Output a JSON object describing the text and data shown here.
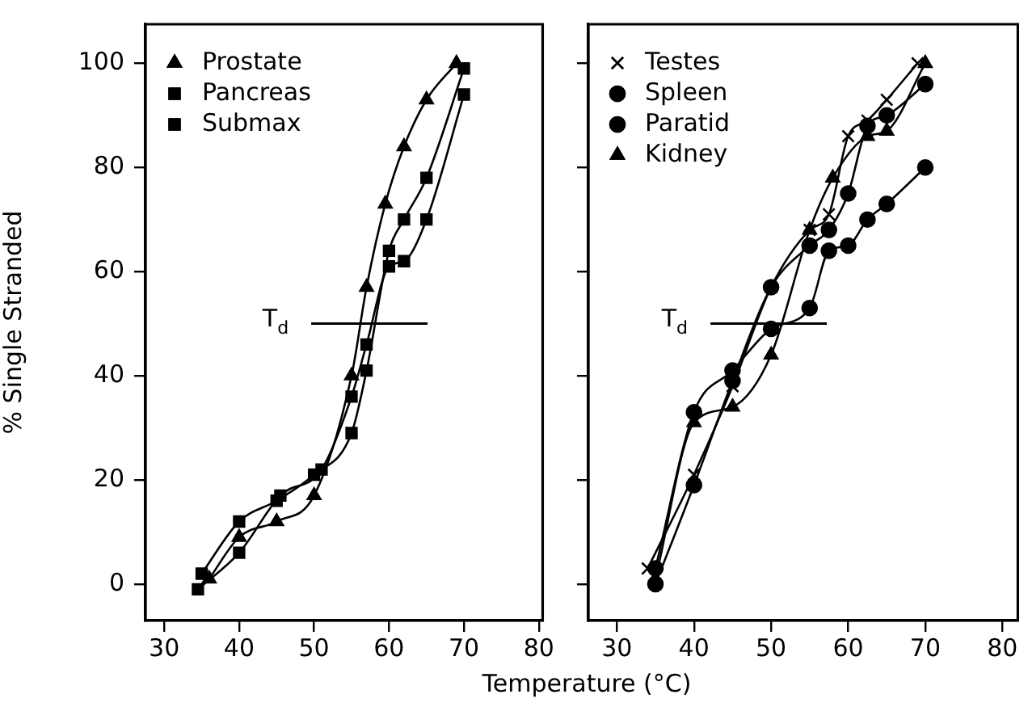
{
  "chart_data": [
    {
      "type": "line",
      "ylabel": "% Single Stranded",
      "xlabel": "Temperature (°C)",
      "xlim": [
        27.5,
        80.5
      ],
      "xticks": [
        30,
        40,
        50,
        60,
        70,
        80
      ],
      "ylim": [
        -7,
        107.5
      ],
      "yticks": [
        0,
        20,
        40,
        60,
        80,
        100
      ],
      "legend": "top left",
      "grid": false,
      "ref_lines": [
        {
          "axis": "y",
          "value": 50,
          "label": "T$_{d}$"
        }
      ],
      "series": [
        {
          "name": "Prostate",
          "color": "#000000",
          "marker": "triangle",
          "x": [
            36,
            40,
            45,
            50,
            55,
            57,
            59.5,
            62,
            65,
            69
          ],
          "values": [
            1,
            9,
            12,
            17,
            40,
            57,
            73,
            84,
            93,
            100
          ]
        },
        {
          "name": "Pancreas",
          "color": "#000000",
          "marker": "square",
          "x": [
            35,
            40,
            45,
            50,
            55,
            57,
            60,
            62,
            65,
            70
          ],
          "values": [
            2,
            12,
            16,
            21,
            29,
            41,
            64,
            70,
            78,
            99
          ]
        },
        {
          "name": "Submax",
          "color": "#000000",
          "marker": "square",
          "x": [
            34.5,
            40,
            45.5,
            51,
            55,
            57,
            60,
            62,
            65,
            70
          ],
          "values": [
            -1,
            6,
            17,
            22,
            36,
            46,
            61,
            62,
            70,
            94
          ]
        }
      ]
    },
    {
      "type": "line",
      "xlim": [
        26.3,
        82
      ],
      "xticks": [
        30,
        40,
        50,
        60,
        70,
        80
      ],
      "ylim": [
        -7,
        107.5
      ],
      "yticks": [
        0,
        20,
        40,
        60,
        80,
        100
      ],
      "tick_labels": "x",
      "legend": "top left",
      "grid": false,
      "ref_lines": [
        {
          "axis": "y",
          "value": 50,
          "label": "T$_{d}$"
        }
      ],
      "series": [
        {
          "name": "Testes",
          "color": "#000000",
          "marker": "cross",
          "x": [
            34,
            40,
            45,
            50,
            55,
            57.5,
            60,
            62.5,
            65,
            69
          ],
          "values": [
            3,
            21,
            38,
            57,
            68,
            71,
            86,
            89,
            93,
            100
          ]
        },
        {
          "name": "Spleen",
          "color": "#000000",
          "marker": "circle",
          "x": [
            35,
            40,
            45,
            50,
            55,
            57.5,
            60,
            62.5,
            65,
            70
          ],
          "values": [
            0,
            19,
            39,
            57,
            65,
            68,
            75,
            88,
            90,
            96
          ]
        },
        {
          "name": "Paratid",
          "color": "#000000",
          "marker": "circle",
          "x": [
            35,
            40,
            45,
            50,
            55,
            57.5,
            60,
            62.5,
            65,
            70
          ],
          "values": [
            3,
            33,
            41,
            49,
            53,
            64,
            65,
            70,
            73,
            80
          ]
        },
        {
          "name": "Kidney",
          "color": "#000000",
          "marker": "triangle",
          "x": [
            35,
            40,
            45,
            50,
            55,
            58,
            62.5,
            65,
            70
          ],
          "values": [
            1,
            31,
            34,
            44,
            68,
            78,
            86,
            87,
            100
          ]
        }
      ]
    }
  ]
}
